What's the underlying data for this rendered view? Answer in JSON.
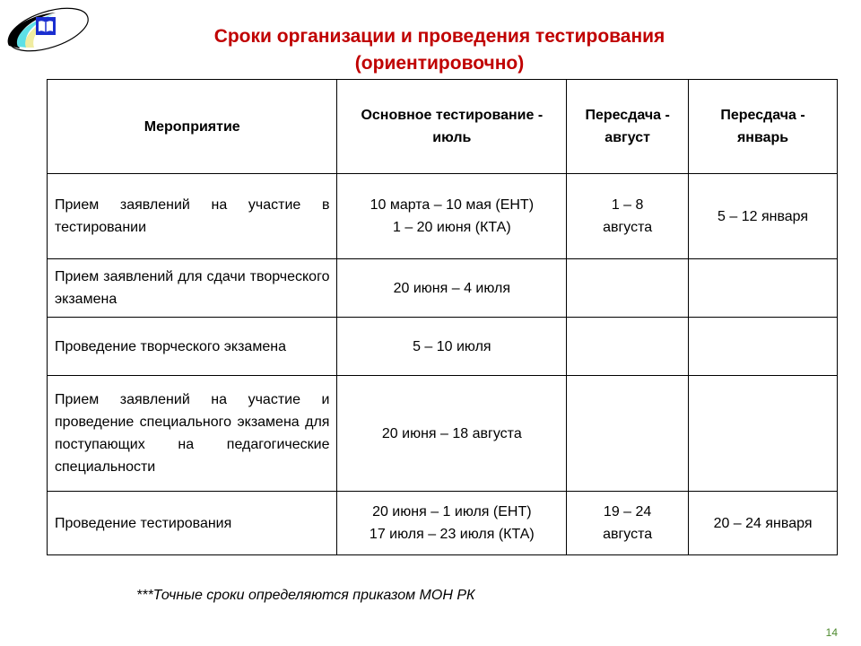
{
  "title": {
    "line1": "Сроки организации и проведения тестирования",
    "line2": "(ориентировочно)"
  },
  "table": {
    "headers": [
      "Мероприятие",
      "Основное тестирование  - июль",
      "Пересдача - август",
      "Пересдача - январь"
    ],
    "rows": [
      {
        "event": "Прием заявлений на участие в тестировании",
        "main1": "10 марта – 10 мая (ЕНТ)",
        "main2": "1 – 20 июня (КТА)",
        "aug1": "1 – 8",
        "aug2": "августа",
        "jan": "5 – 12 января"
      },
      {
        "event": "Прием заявлений для сдачи творческого экзамена",
        "main1": "20 июня – 4 июля",
        "main2": "",
        "aug1": "",
        "aug2": "",
        "jan": ""
      },
      {
        "event": "Проведение творческого экзамена",
        "main1": "5 – 10 июля",
        "main2": "",
        "aug1": "",
        "aug2": "",
        "jan": ""
      },
      {
        "event": "Прием заявлений на участие и проведение специального экзамена для поступающих на педагогические специальности",
        "main1": "20 июня – 18 августа",
        "main2": "",
        "aug1": "",
        "aug2": "",
        "jan": ""
      },
      {
        "event": "Проведение тестирования",
        "main1": "20 июня – 1 июля (ЕНТ)",
        "main2": "17 июля – 23 июля (КТА)",
        "aug1": "19 – 24",
        "aug2": "августа",
        "jan": "20 – 24 января"
      }
    ]
  },
  "note": "***Точные сроки определяются приказом МОН РК",
  "page_number": "14",
  "colors": {
    "title": "#c00000",
    "page_number": "#4e8a2f"
  },
  "logo": {
    "icon": "open-book-logo"
  }
}
